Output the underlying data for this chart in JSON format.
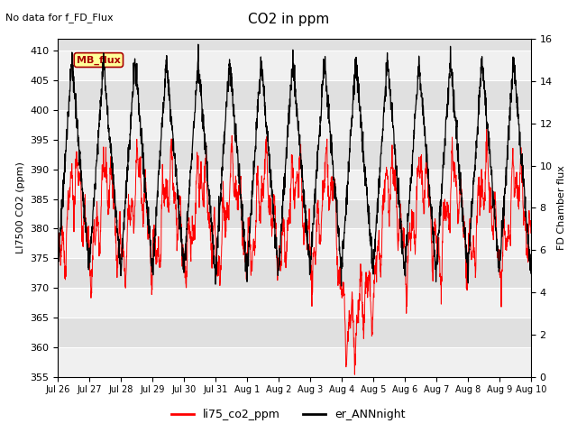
{
  "title": "CO2 in ppm",
  "subtitle": "No data for f_FD_Flux",
  "ylabel_left": "LI7500 CO2 (ppm)",
  "ylabel_right": "FD Chamber flux",
  "ylim_left": [
    355,
    412
  ],
  "ylim_right": [
    0,
    16
  ],
  "yticks_left": [
    355,
    360,
    365,
    370,
    375,
    380,
    385,
    390,
    395,
    400,
    405,
    410
  ],
  "yticks_right": [
    0,
    2,
    4,
    6,
    8,
    10,
    12,
    14,
    16
  ],
  "xtick_labels": [
    "Jul 26",
    "Jul 27",
    "Jul 28",
    "Jul 29",
    "Jul 30",
    "Jul 31",
    "Aug 1",
    "Aug 2",
    "Aug 3",
    "Aug 4",
    "Aug 5",
    "Aug 6",
    "Aug 7",
    "Aug 8",
    "Aug 9",
    "Aug 10"
  ],
  "legend_labels": [
    "li75_co2_ppm",
    "er_ANNnight"
  ],
  "mb_flux_box_color": "#ffff99",
  "mb_flux_text_color": "#aa0000",
  "mb_flux_border_color": "#aa0000",
  "background_color": "#e0e0e0",
  "band_color": "#f0f0f0",
  "figsize": [
    6.4,
    4.8
  ],
  "dpi": 100
}
